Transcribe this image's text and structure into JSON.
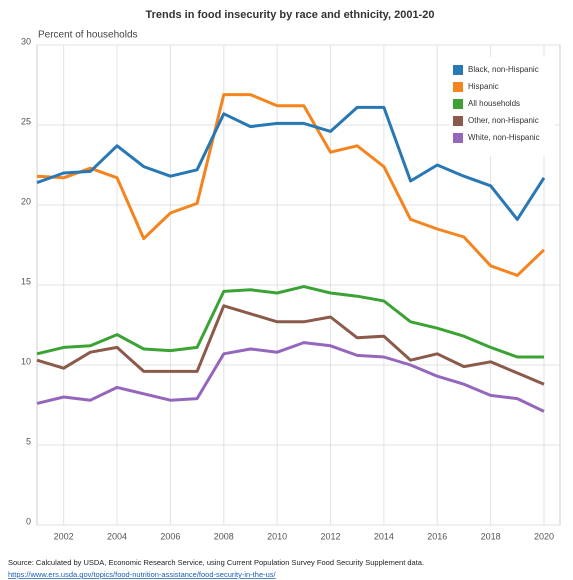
{
  "chart_data": {
    "type": "line",
    "title": "Trends in food insecurity by race and ethnicity, 2001-20",
    "y_label": "Percent of households",
    "source": "Source: Calculated by USDA, Economic Research Service, using Current Population Survey Food Security Supplement data.",
    "source_url": "https://www.ers.usda.gov/topics/food-nutrition-assistance/food-security-in-the-us/",
    "x": [
      2001,
      2002,
      2003,
      2004,
      2005,
      2006,
      2007,
      2008,
      2009,
      2010,
      2011,
      2012,
      2013,
      2014,
      2015,
      2016,
      2017,
      2018,
      2019,
      2020
    ],
    "xlim": [
      2001,
      2020.6
    ],
    "xticks": [
      2002,
      2004,
      2006,
      2008,
      2010,
      2012,
      2014,
      2016,
      2018,
      2020
    ],
    "ylim": [
      0,
      30
    ],
    "yticks": [
      0,
      5,
      10,
      15,
      20,
      25,
      30
    ],
    "grid": true,
    "legend": "top-right",
    "series": [
      {
        "name": "Black, non-Hispanic",
        "color": "#2878b5",
        "values": [
          21.4,
          22.0,
          22.1,
          23.7,
          22.4,
          21.8,
          22.2,
          25.7,
          24.9,
          25.1,
          25.1,
          24.6,
          26.1,
          26.1,
          21.5,
          22.5,
          21.8,
          21.2,
          19.1,
          21.7
        ]
      },
      {
        "name": "Hispanic",
        "color": "#f5841f",
        "values": [
          21.8,
          21.7,
          22.3,
          21.7,
          17.9,
          19.5,
          20.1,
          26.9,
          26.9,
          26.2,
          26.2,
          23.3,
          23.7,
          22.4,
          19.1,
          18.5,
          18.0,
          16.2,
          15.6,
          17.2
        ]
      },
      {
        "name": "All households",
        "color": "#3aa334",
        "values": [
          10.7,
          11.1,
          11.2,
          11.9,
          11.0,
          10.9,
          11.1,
          14.6,
          14.7,
          14.5,
          14.9,
          14.5,
          14.3,
          14.0,
          12.7,
          12.3,
          11.8,
          11.1,
          10.5,
          10.5
        ]
      },
      {
        "name": "Other, non-Hispanic",
        "color": "#8c5a4a",
        "values": [
          10.3,
          9.8,
          10.8,
          11.1,
          9.6,
          9.6,
          9.6,
          13.7,
          13.2,
          12.7,
          12.7,
          13.0,
          11.7,
          11.8,
          10.3,
          10.7,
          9.9,
          10.2,
          9.5,
          8.8
        ]
      },
      {
        "name": "White, non-Hispanic",
        "color": "#9467bd",
        "values": [
          7.6,
          8.0,
          7.8,
          8.6,
          8.2,
          7.8,
          7.9,
          10.7,
          11.0,
          10.8,
          11.4,
          11.2,
          10.6,
          10.5,
          10.0,
          9.3,
          8.8,
          8.1,
          7.9,
          7.1
        ]
      }
    ]
  }
}
